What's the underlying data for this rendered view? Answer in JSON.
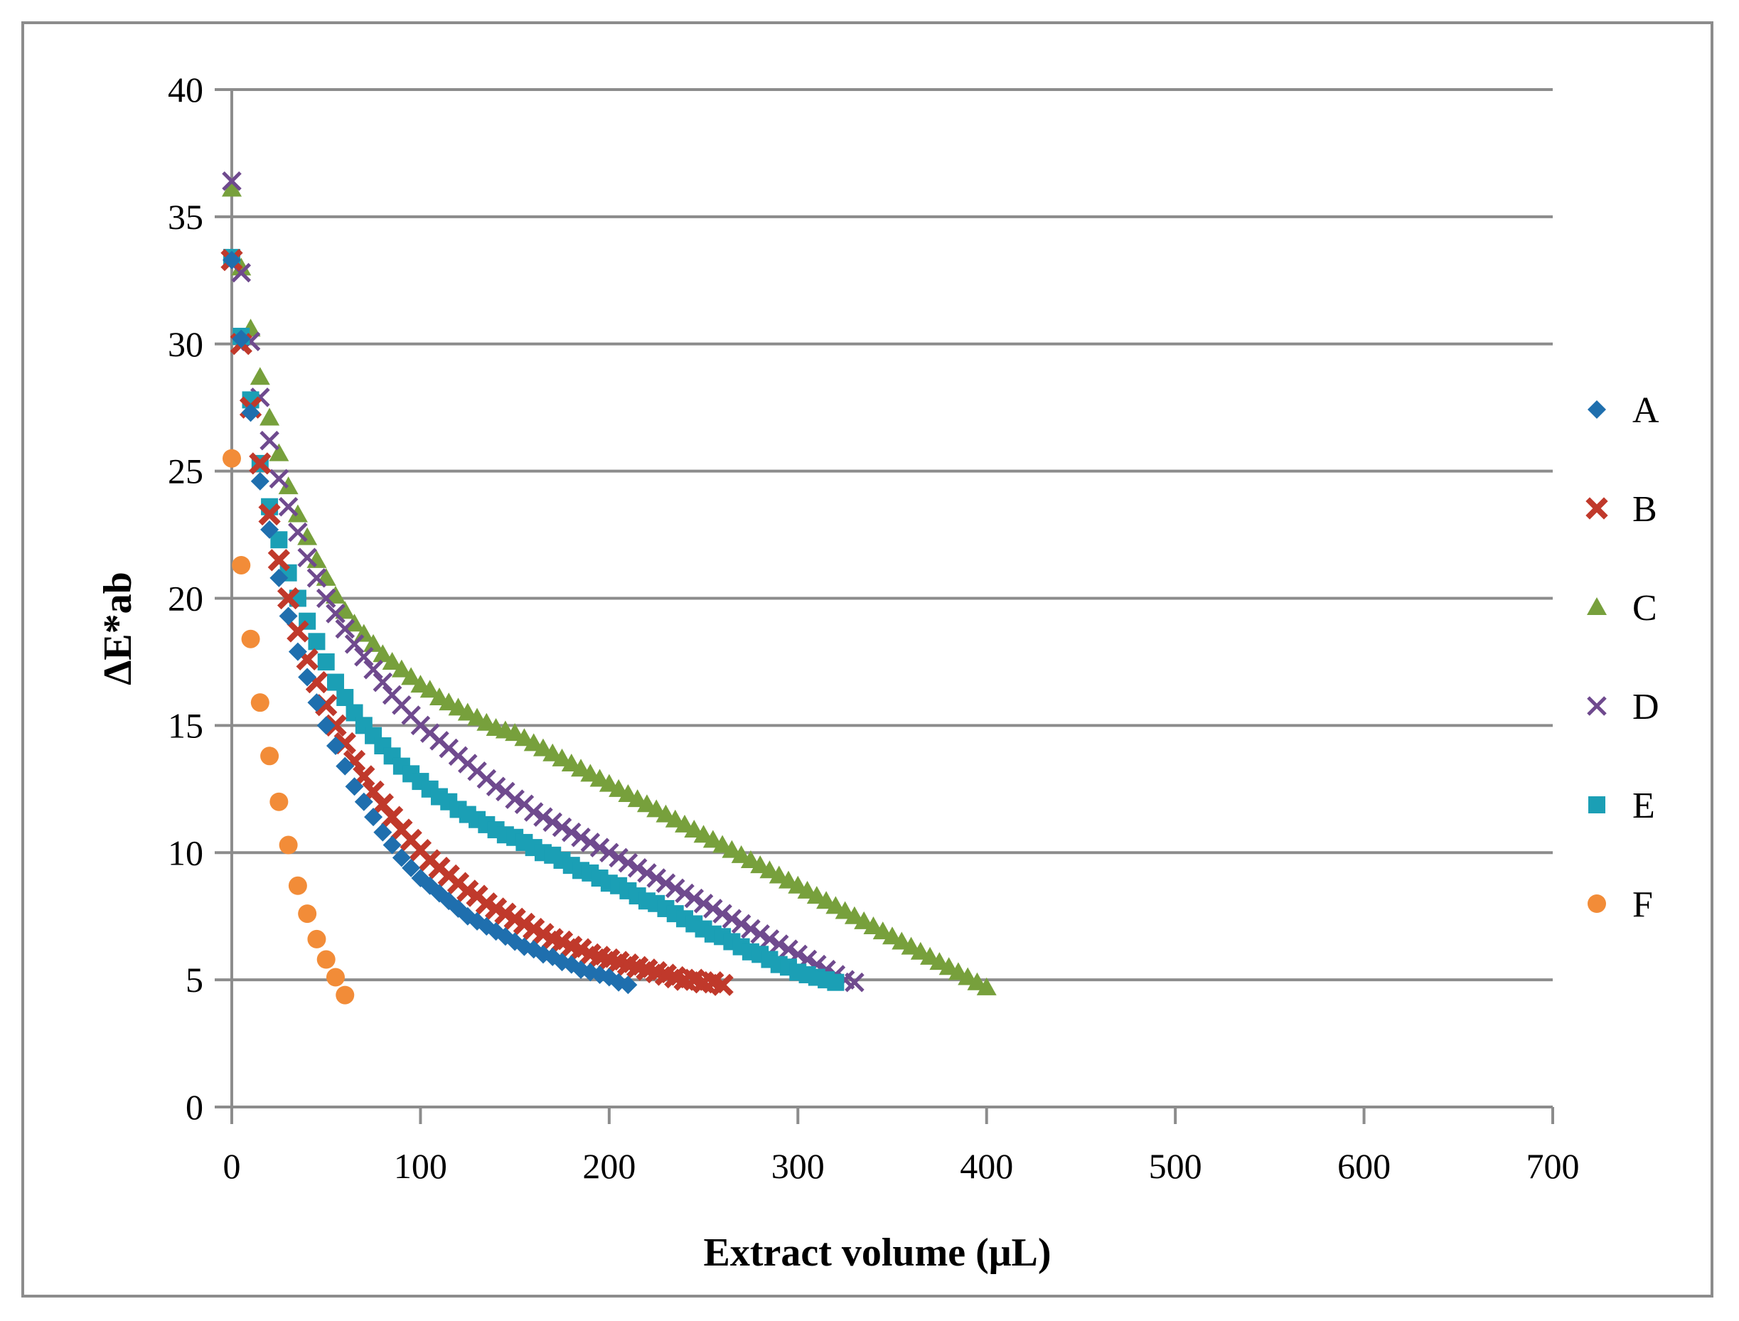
{
  "chart_data": {
    "type": "scatter",
    "title": "",
    "xlabel": "Extract volume (μL)",
    "ylabel": "ΔE*ab",
    "xlim": [
      0,
      700
    ],
    "ylim": [
      0,
      40
    ],
    "x_ticks": [
      0,
      100,
      200,
      300,
      400,
      500,
      600,
      700
    ],
    "y_ticks": [
      0,
      5,
      10,
      15,
      20,
      25,
      30,
      35,
      40
    ],
    "x_tick_labels": [
      "0",
      "100",
      "200",
      "300",
      "400",
      "500",
      "600",
      "700"
    ],
    "y_tick_labels": [
      "0",
      "5",
      "10",
      "15",
      "20",
      "25",
      "30",
      "35",
      "40"
    ],
    "grid": "horizontal",
    "legend_position": "right",
    "series": [
      {
        "name": "A",
        "marker": "diamond",
        "color": "#1f6fae",
        "x_start": 0,
        "x_step": 5,
        "values": [
          33.3,
          30.2,
          27.3,
          24.6,
          22.7,
          20.8,
          19.3,
          17.9,
          16.9,
          15.9,
          15.0,
          14.2,
          13.4,
          12.6,
          12.0,
          11.4,
          10.8,
          10.3,
          9.8,
          9.4,
          9.0,
          8.7,
          8.4,
          8.1,
          7.8,
          7.5,
          7.3,
          7.1,
          6.9,
          6.7,
          6.5,
          6.3,
          6.2,
          6.0,
          5.9,
          5.7,
          5.6,
          5.4,
          5.3,
          5.2,
          5.1,
          4.9,
          4.8
        ]
      },
      {
        "name": "B",
        "marker": "x-mark",
        "color": "#c0392b",
        "x_start": 0,
        "x_step": 5,
        "values": [
          33.3,
          30.0,
          27.5,
          25.3,
          23.3,
          21.5,
          20.0,
          18.7,
          17.6,
          16.7,
          15.8,
          15.0,
          14.3,
          13.6,
          13.0,
          12.4,
          11.9,
          11.4,
          10.9,
          10.5,
          10.1,
          9.7,
          9.4,
          9.1,
          8.8,
          8.5,
          8.3,
          8.0,
          7.8,
          7.6,
          7.4,
          7.2,
          7.0,
          6.8,
          6.6,
          6.5,
          6.3,
          6.2,
          6.0,
          5.9,
          5.8,
          5.7,
          5.6,
          5.5,
          5.4,
          5.3,
          5.2,
          5.1,
          5.0,
          5.0,
          4.9,
          4.9,
          4.8
        ]
      },
      {
        "name": "C",
        "marker": "triangle",
        "color": "#77a03c",
        "x_start": 0,
        "x_step": 5,
        "values": [
          36.1,
          33.0,
          30.6,
          28.7,
          27.1,
          25.7,
          24.4,
          23.3,
          22.4,
          21.5,
          20.8,
          20.1,
          19.5,
          19.0,
          18.6,
          18.2,
          17.8,
          17.5,
          17.2,
          16.9,
          16.6,
          16.4,
          16.1,
          15.9,
          15.7,
          15.5,
          15.3,
          15.1,
          14.9,
          14.8,
          14.7,
          14.5,
          14.3,
          14.1,
          13.9,
          13.7,
          13.5,
          13.3,
          13.1,
          12.9,
          12.7,
          12.5,
          12.3,
          12.1,
          11.9,
          11.7,
          11.5,
          11.3,
          11.1,
          10.9,
          10.7,
          10.5,
          10.3,
          10.1,
          9.9,
          9.7,
          9.5,
          9.3,
          9.1,
          8.9,
          8.7,
          8.5,
          8.3,
          8.1,
          7.9,
          7.7,
          7.5,
          7.3,
          7.1,
          6.9,
          6.7,
          6.5,
          6.3,
          6.1,
          5.9,
          5.7,
          5.5,
          5.3,
          5.1,
          4.9,
          4.7
        ]
      },
      {
        "name": "D",
        "marker": "cross",
        "color": "#6f4a8e",
        "x_start": 0,
        "x_step": 5,
        "values": [
          36.4,
          32.8,
          30.1,
          27.9,
          26.2,
          24.7,
          23.6,
          22.6,
          21.6,
          20.8,
          20.0,
          19.4,
          18.8,
          18.2,
          17.7,
          17.2,
          16.7,
          16.2,
          15.8,
          15.4,
          15.0,
          14.7,
          14.4,
          14.1,
          13.8,
          13.5,
          13.2,
          12.9,
          12.6,
          12.4,
          12.1,
          11.9,
          11.6,
          11.4,
          11.2,
          11.0,
          10.8,
          10.6,
          10.4,
          10.2,
          10.0,
          9.8,
          9.6,
          9.4,
          9.2,
          9.0,
          8.8,
          8.6,
          8.4,
          8.2,
          8.0,
          7.8,
          7.6,
          7.4,
          7.2,
          7.0,
          6.8,
          6.6,
          6.4,
          6.2,
          6.0,
          5.8,
          5.6,
          5.4,
          5.2,
          5.0,
          4.9
        ]
      },
      {
        "name": "E",
        "marker": "square",
        "color": "#1b9fb5",
        "x_start": 0,
        "x_step": 5,
        "values": [
          33.4,
          30.3,
          27.8,
          25.3,
          23.6,
          22.3,
          21.0,
          20.0,
          19.1,
          18.3,
          17.5,
          16.7,
          16.1,
          15.5,
          15.0,
          14.6,
          14.2,
          13.8,
          13.4,
          13.1,
          12.8,
          12.5,
          12.2,
          12.0,
          11.7,
          11.5,
          11.3,
          11.1,
          10.9,
          10.7,
          10.6,
          10.4,
          10.2,
          10.0,
          9.9,
          9.7,
          9.5,
          9.3,
          9.2,
          9.0,
          8.8,
          8.7,
          8.5,
          8.3,
          8.1,
          8.0,
          7.8,
          7.6,
          7.4,
          7.2,
          7.0,
          6.8,
          6.7,
          6.5,
          6.3,
          6.1,
          6.0,
          5.8,
          5.6,
          5.5,
          5.3,
          5.2,
          5.1,
          5.0,
          4.9
        ]
      },
      {
        "name": "F",
        "marker": "circle",
        "color": "#f28c38",
        "x_start": 0,
        "x_step": 5,
        "values": [
          25.5,
          21.3,
          18.4,
          15.9,
          13.8,
          12.0,
          10.3,
          8.7,
          7.6,
          6.6,
          5.8,
          5.1,
          4.4
        ]
      }
    ]
  }
}
